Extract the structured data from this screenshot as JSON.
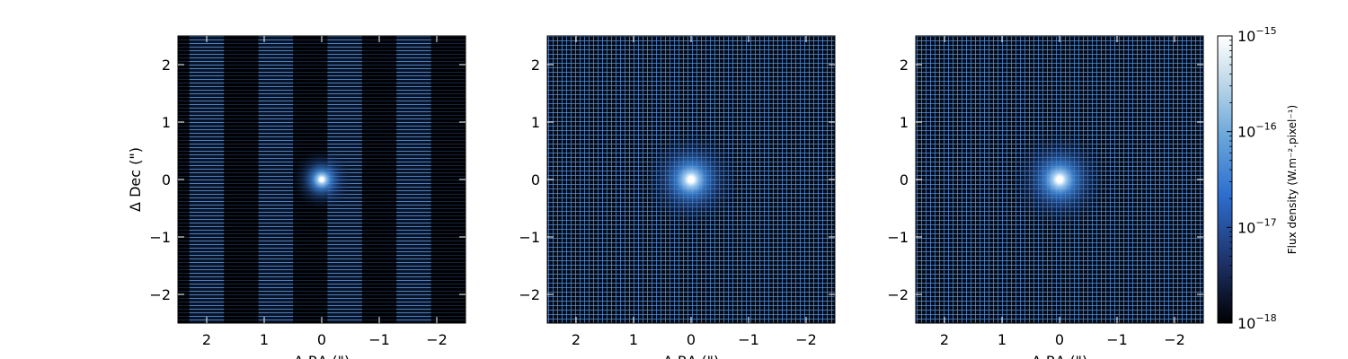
{
  "chart_data": [
    {
      "type": "heatmap",
      "panel": "left",
      "xlabel": "Δ RA (\")",
      "ylabel": "Δ Dec (\")",
      "xlim": [
        2.5,
        -2.5
      ],
      "ylim": [
        -2.5,
        2.5
      ],
      "xticks": [
        2,
        1,
        0,
        -1,
        -2
      ],
      "xtick_labels": [
        "2",
        "1",
        "0",
        "−1",
        "−2"
      ],
      "yticks": [
        2,
        1,
        0,
        -1,
        -2
      ],
      "ytick_labels": [
        "2",
        "1",
        "0",
        "−1",
        "−2"
      ],
      "source_position": [
        0,
        0
      ],
      "pattern": "vertical slit stripes",
      "stripe_centers": [
        2.0,
        0.8,
        -0.4,
        -1.6
      ],
      "stripe_width": 0.3
    },
    {
      "type": "heatmap",
      "panel": "middle",
      "xlabel": "Δ RA (\")",
      "ylabel": "",
      "xlim": [
        2.5,
        -2.5
      ],
      "ylim": [
        -2.5,
        2.5
      ],
      "xticks": [
        2,
        1,
        0,
        -1,
        -2
      ],
      "xtick_labels": [
        "2",
        "1",
        "0",
        "−1",
        "−2"
      ],
      "yticks": [
        2,
        1,
        0,
        -1,
        -2
      ],
      "ytick_labels": [
        "2",
        "1",
        "0",
        "−1",
        "−2"
      ],
      "source_position": [
        0,
        0
      ],
      "pattern": "full grid"
    },
    {
      "type": "heatmap",
      "panel": "right",
      "xlabel": "Δ RA (\")",
      "ylabel": "",
      "xlim": [
        2.5,
        -2.5
      ],
      "ylim": [
        -2.5,
        2.5
      ],
      "xticks": [
        2,
        1,
        0,
        -1,
        -2
      ],
      "xtick_labels": [
        "2",
        "1",
        "0",
        "−1",
        "−2"
      ],
      "yticks": [
        2,
        1,
        0,
        -1,
        -2
      ],
      "ytick_labels": [
        "2",
        "1",
        "0",
        "−1",
        "−2"
      ],
      "source_position": [
        0,
        0
      ],
      "pattern": "full grid"
    }
  ],
  "colorbar": {
    "label": "Flux density (W.m⁻².pixel⁻¹)",
    "scale": "log",
    "range": [
      1e-18,
      1e-15
    ],
    "ticks": [
      {
        "exp": -15,
        "base": "10",
        "sup": "−15"
      },
      {
        "exp": -16,
        "base": "10",
        "sup": "−16"
      },
      {
        "exp": -17,
        "base": "10",
        "sup": "−17"
      },
      {
        "exp": -18,
        "base": "10",
        "sup": "−18"
      }
    ],
    "colors": [
      "#000000",
      "#1c2f63",
      "#2e6fd0",
      "#6aa6da",
      "#c3dbe9",
      "#ffffff"
    ]
  },
  "colors": {
    "background": "#000000",
    "grid_line": "#5a9ae6",
    "source_core": "#ffffff"
  }
}
